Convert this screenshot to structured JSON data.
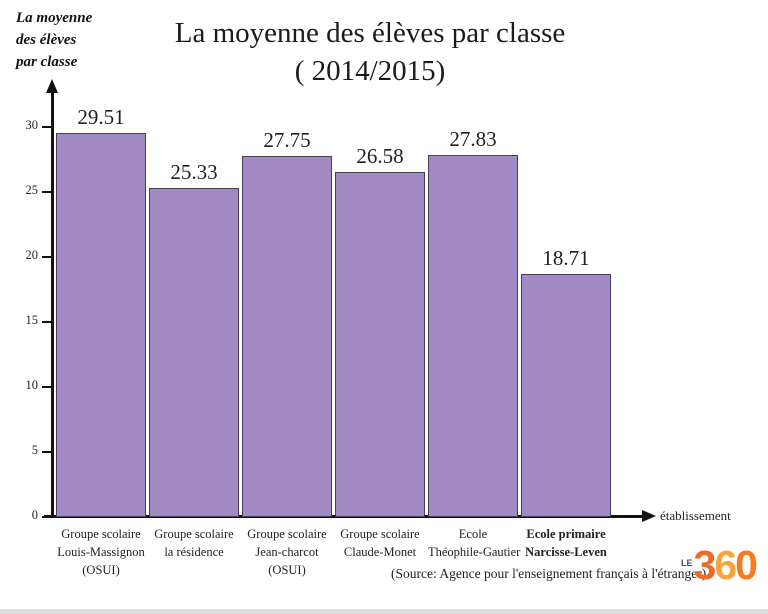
{
  "chart_data": {
    "type": "bar",
    "title": "La moyenne des élèves par classe",
    "subtitle": "( 2014/2015)",
    "ylabel_lines": [
      "La moyenne",
      "des élèves",
      "par classe"
    ],
    "xlabel": "établissement",
    "categories": [
      [
        "Groupe scolaire",
        "Louis-Massignon",
        "(OSUI)"
      ],
      [
        "Groupe scolaire",
        "la résidence"
      ],
      [
        "Groupe scolaire",
        "Jean-charcot",
        "(OSUI)"
      ],
      [
        "Groupe scolaire",
        "Claude-Monet"
      ],
      [
        "Ecole",
        "Théophile-Gautier"
      ],
      [
        "Ecole primaire",
        "Narcisse-Leven"
      ]
    ],
    "values": [
      29.51,
      25.33,
      27.75,
      26.58,
      27.83,
      18.71
    ],
    "value_labels": [
      "29.51",
      "25.33",
      "27.75",
      "26.58",
      "27.83",
      "18.71"
    ],
    "ylim": [
      0,
      30
    ],
    "yticks": [
      "0",
      "5",
      "10",
      "15",
      "20",
      "25",
      "30"
    ],
    "grid": false,
    "legend": "none",
    "bar_color": "#a189c4",
    "bar_border_color": "#473f55"
  },
  "footer": {
    "source": "(Source: Agence pour l'enseignement français à l'étranger)",
    "logo": {
      "prefix": "LE",
      "digits": [
        "3",
        "6",
        "0"
      ],
      "digit_colors": [
        "#ee6a25",
        "#f9a33c",
        "#f47c20"
      ],
      "prefix_color": "#4a4a4a"
    }
  }
}
